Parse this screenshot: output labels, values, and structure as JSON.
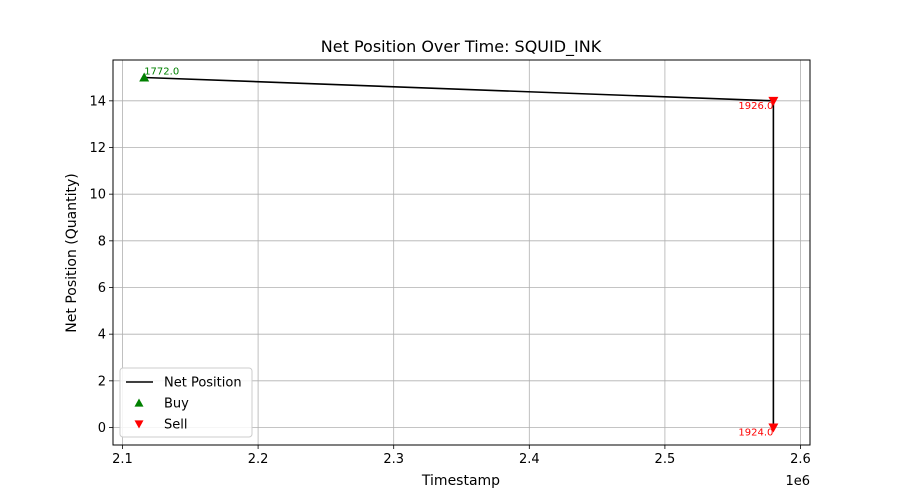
{
  "chart_data": {
    "type": "line",
    "title": "Net Position Over Time: SQUID_INK",
    "xlabel": "Timestamp",
    "ylabel": "Net Position (Quantity)",
    "x_offset_label": "1e6",
    "xlim": [
      2.093,
      2.607
    ],
    "ylim": [
      -0.75,
      15.75
    ],
    "xticks": [
      2.1,
      2.2,
      2.3,
      2.4,
      2.5,
      2.6
    ],
    "xtick_labels": [
      "2.1",
      "2.2",
      "2.3",
      "2.4",
      "2.5",
      "2.6"
    ],
    "yticks": [
      0,
      2,
      4,
      6,
      8,
      10,
      12,
      14
    ],
    "ytick_labels": [
      "0",
      "2",
      "4",
      "6",
      "8",
      "10",
      "12",
      "14"
    ],
    "grid": true,
    "legend_position": "lower-left",
    "series": [
      {
        "name": "Net Position",
        "kind": "line",
        "color": "#000000",
        "x": [
          2.116,
          2.58,
          2.58
        ],
        "y": [
          15,
          14,
          0
        ]
      },
      {
        "name": "Buy",
        "kind": "scatter",
        "marker": "triangle-up",
        "color": "#008000",
        "points": [
          {
            "x": 2.116,
            "y": 15,
            "label": "1772.0"
          }
        ]
      },
      {
        "name": "Sell",
        "kind": "scatter",
        "marker": "triangle-down",
        "color": "#ff0000",
        "points": [
          {
            "x": 2.58,
            "y": 14,
            "label": "1926.0"
          },
          {
            "x": 2.58,
            "y": 0,
            "label": "1924.0"
          }
        ]
      }
    ]
  }
}
